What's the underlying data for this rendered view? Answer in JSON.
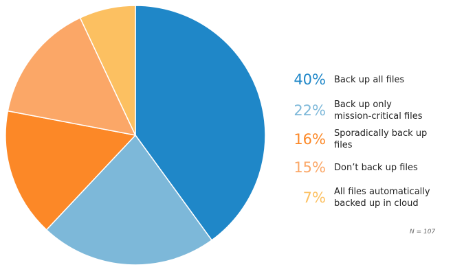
{
  "chart_data": {
    "type": "pie",
    "title": "",
    "start": "top",
    "direction": "clockwise",
    "legend_position": "right",
    "slices": [
      {
        "value": 40,
        "pct_label": "40%",
        "label": "Back up all files",
        "color": "#1f87c8"
      },
      {
        "value": 22,
        "pct_label": "22%",
        "label": "Back up only\nmission-critical files",
        "color": "#7db8d9"
      },
      {
        "value": 16,
        "pct_label": "16%",
        "label": "Sporadically back up\nfiles",
        "color": "#fc8827"
      },
      {
        "value": 15,
        "pct_label": "15%",
        "label": "Don’t back up files",
        "color": "#fba767"
      },
      {
        "value": 7,
        "pct_label": "7%",
        "label": "All files automatically\nbacked up in cloud",
        "color": "#fcc061"
      }
    ],
    "note": "N = 107"
  }
}
